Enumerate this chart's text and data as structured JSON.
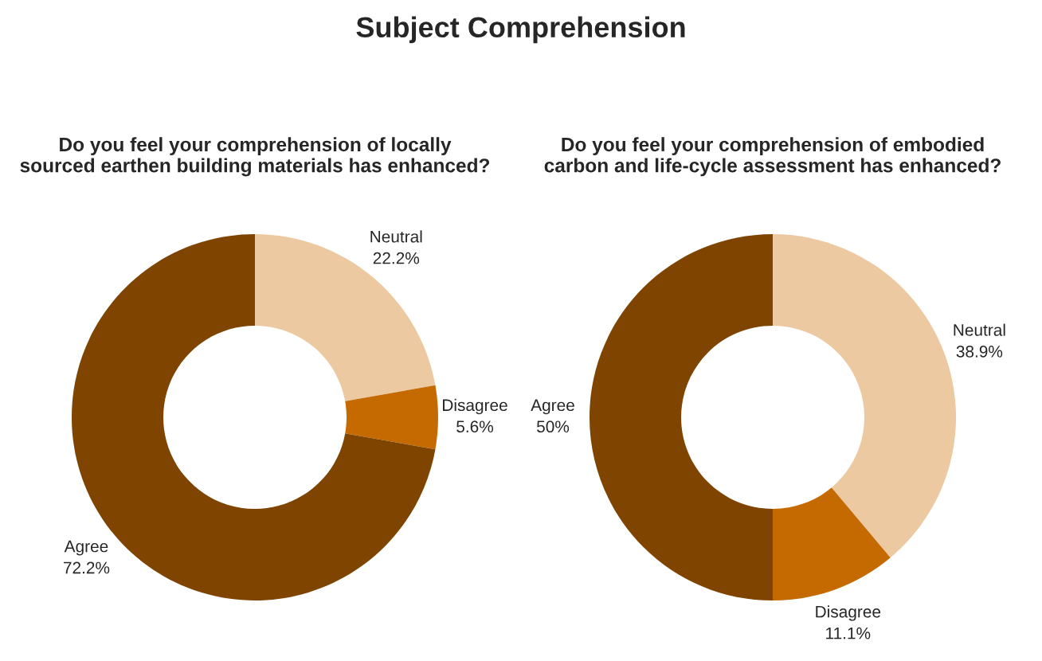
{
  "chart_data": [
    {
      "type": "donut",
      "title": "Do you feel your comprehension of locally\nsourced earthen building materials has enhanced?",
      "categories": [
        "Neutral",
        "Disagree",
        "Agree"
      ],
      "values": [
        22.2,
        5.6,
        72.2
      ],
      "value_labels": [
        "22.2%",
        "5.6%",
        "72.2%"
      ],
      "colors": [
        "#ecc9a0",
        "#c56a00",
        "#7f4500"
      ],
      "legend": false,
      "annotations": [
        "Subject Comprehension"
      ]
    },
    {
      "type": "donut",
      "title": "Do you feel your comprehension of embodied\ncarbon and life-cycle assessment has enhanced?",
      "categories": [
        "Neutral",
        "Disagree",
        "Agree"
      ],
      "values": [
        38.9,
        11.1,
        50
      ],
      "value_labels": [
        "38.9%",
        "11.1%",
        "50%"
      ],
      "colors": [
        "#ecc9a0",
        "#c56a00",
        "#7f4500"
      ],
      "legend": false
    }
  ]
}
